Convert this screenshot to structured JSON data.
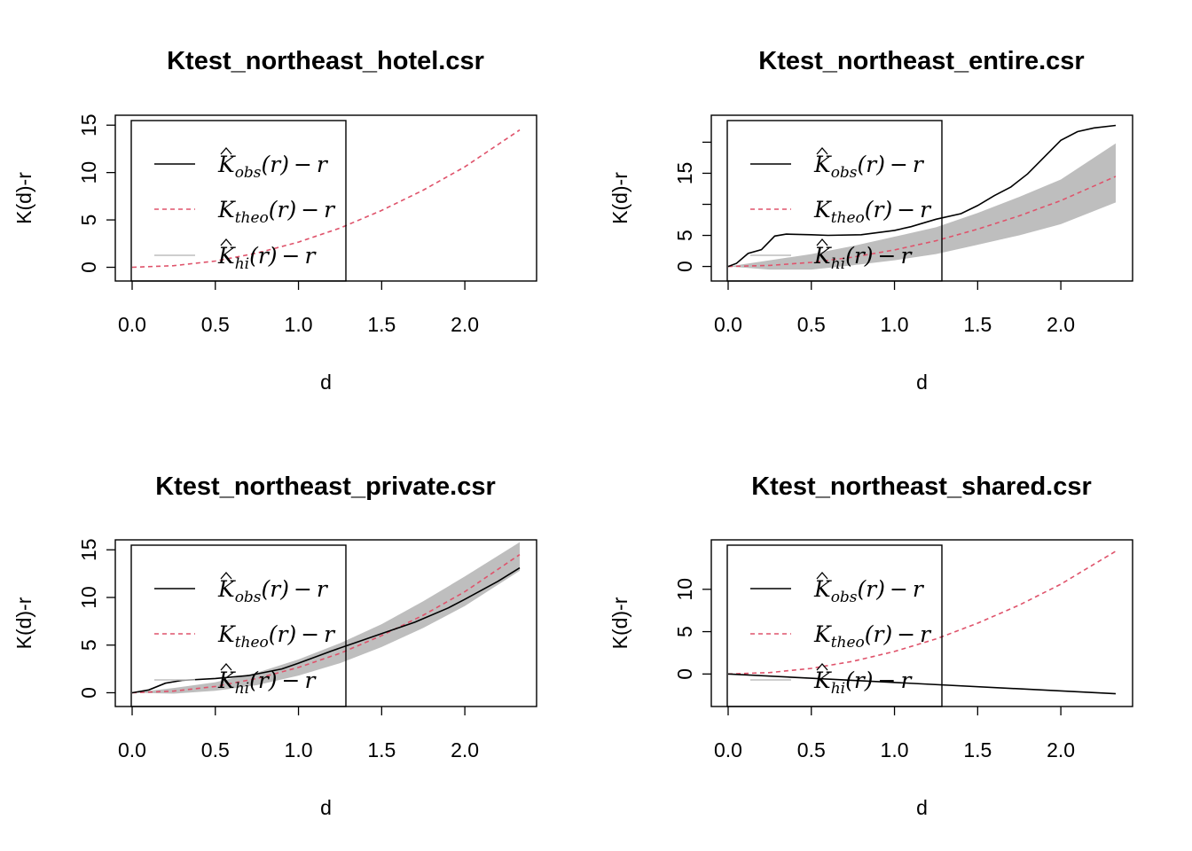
{
  "chart_data": [
    {
      "type": "line",
      "title": "Ktest_northeast_hotel.csr",
      "xlabel": "d",
      "ylabel": "K(d)-r",
      "xlim": [
        0,
        2.33
      ],
      "ylim": [
        -0.7,
        15.3
      ],
      "x_ticks": [
        "0.0",
        "0.5",
        "1.0",
        "1.5",
        "2.0"
      ],
      "y_ticks": [
        "0",
        "5",
        "10",
        "15"
      ],
      "legend": {
        "placement": "top-left",
        "entries": [
          "obs",
          "theo",
          "hi"
        ]
      },
      "envelope": null,
      "series": [
        {
          "name": "theo",
          "style": "dashed",
          "color": "#DF536B",
          "x": [
            0,
            0.25,
            0.5,
            0.75,
            1.0,
            1.25,
            1.5,
            1.75,
            2.0,
            2.33
          ],
          "y": [
            0,
            0.17,
            0.66,
            1.5,
            2.66,
            4.14,
            6.0,
            8.14,
            10.6,
            14.5
          ]
        }
      ]
    },
    {
      "type": "line",
      "title": "Ktest_northeast_entire.csr",
      "xlabel": "d",
      "ylabel": "K(d)-r",
      "xlim": [
        0,
        2.33
      ],
      "ylim": [
        -1.2,
        23.2
      ],
      "x_ticks": [
        "0.0",
        "0.5",
        "1.0",
        "1.5",
        "2.0"
      ],
      "y_ticks": [
        "0",
        "5",
        "15"
      ],
      "legend": {
        "placement": "top-left",
        "entries": [
          "obs",
          "theo",
          "hi"
        ]
      },
      "envelope": {
        "color": "#BEBEBE",
        "x": [
          0,
          0.25,
          0.5,
          0.75,
          1.0,
          1.25,
          1.5,
          1.75,
          2.0,
          2.33
        ],
        "lo": [
          0,
          -0.5,
          -0.5,
          0.2,
          1.0,
          2.0,
          3.5,
          5.0,
          6.8,
          10.3
        ],
        "hi": [
          0,
          1.0,
          2.0,
          3.3,
          4.8,
          6.3,
          8.6,
          11.2,
          14.0,
          19.8
        ]
      },
      "series": [
        {
          "name": "theo",
          "style": "dashed",
          "color": "#DF536B",
          "x": [
            0,
            0.25,
            0.5,
            0.75,
            1.0,
            1.25,
            1.5,
            1.75,
            2.0,
            2.33
          ],
          "y": [
            0,
            0.17,
            0.66,
            1.5,
            2.66,
            4.14,
            6.0,
            8.14,
            10.6,
            14.5
          ]
        },
        {
          "name": "obs",
          "style": "solid",
          "color": "#000000",
          "x": [
            0,
            0.05,
            0.12,
            0.2,
            0.28,
            0.35,
            0.5,
            0.6,
            0.8,
            1.0,
            1.1,
            1.25,
            1.4,
            1.5,
            1.6,
            1.7,
            1.8,
            1.9,
            2.0,
            2.1,
            2.2,
            2.33
          ],
          "y": [
            0,
            0.5,
            2.1,
            2.7,
            4.9,
            5.2,
            5.1,
            5.0,
            5.1,
            5.8,
            6.4,
            7.6,
            8.5,
            9.8,
            11.4,
            12.8,
            14.9,
            17.6,
            20.3,
            21.7,
            22.3,
            22.7
          ]
        }
      ]
    },
    {
      "type": "line",
      "title": "Ktest_northeast_private.csr",
      "xlabel": "d",
      "ylabel": "K(d)-r",
      "xlim": [
        0,
        2.33
      ],
      "ylim": [
        -0.7,
        15.3
      ],
      "x_ticks": [
        "0.0",
        "0.5",
        "1.0",
        "1.5",
        "2.0"
      ],
      "y_ticks": [
        "0",
        "5",
        "10",
        "15"
      ],
      "legend": {
        "placement": "top-left",
        "entries": [
          "obs",
          "theo",
          "hi"
        ]
      },
      "envelope": {
        "color": "#BEBEBE",
        "x": [
          0,
          0.25,
          0.5,
          0.75,
          1.0,
          1.25,
          1.5,
          1.75,
          2.0,
          2.33
        ],
        "lo": [
          0,
          -0.1,
          0.2,
          0.8,
          1.8,
          3.1,
          4.8,
          6.8,
          9.1,
          12.8
        ],
        "hi": [
          0,
          0.5,
          1.1,
          2.1,
          3.5,
          5.2,
          7.2,
          9.6,
          12.2,
          15.8
        ]
      },
      "series": [
        {
          "name": "theo",
          "style": "dashed",
          "color": "#DF536B",
          "x": [
            0,
            0.25,
            0.5,
            0.75,
            1.0,
            1.25,
            1.5,
            1.75,
            2.0,
            2.33
          ],
          "y": [
            0,
            0.17,
            0.66,
            1.5,
            2.66,
            4.14,
            6.0,
            8.14,
            10.6,
            14.5
          ]
        },
        {
          "name": "obs",
          "style": "solid",
          "color": "#000000",
          "x": [
            0,
            0.1,
            0.2,
            0.3,
            0.5,
            0.7,
            0.9,
            1.0,
            1.2,
            1.4,
            1.5,
            1.7,
            1.9,
            2.0,
            2.2,
            2.33
          ],
          "y": [
            0,
            0.3,
            1.0,
            1.3,
            1.5,
            1.8,
            2.5,
            3.1,
            4.4,
            5.6,
            6.2,
            7.4,
            8.9,
            9.8,
            11.7,
            13.1
          ]
        }
      ]
    },
    {
      "type": "line",
      "title": "Ktest_northeast_shared.csr",
      "xlabel": "d",
      "ylabel": "K(d)-r",
      "xlim": [
        0,
        2.33
      ],
      "ylim": [
        -3.0,
        15.0
      ],
      "x_ticks": [
        "0.0",
        "0.5",
        "1.0",
        "1.5",
        "2.0"
      ],
      "y_ticks": [
        "0",
        "5",
        "10"
      ],
      "legend": {
        "placement": "top-left",
        "entries": [
          "obs",
          "theo",
          "hi"
        ]
      },
      "envelope": null,
      "series": [
        {
          "name": "theo",
          "style": "dashed",
          "color": "#DF536B",
          "x": [
            0,
            0.25,
            0.5,
            0.75,
            1.0,
            1.25,
            1.5,
            1.75,
            2.0,
            2.33
          ],
          "y": [
            0,
            0.17,
            0.66,
            1.5,
            2.66,
            4.14,
            6.0,
            8.14,
            10.6,
            14.5
          ]
        },
        {
          "name": "obs",
          "style": "solid",
          "color": "#000000",
          "x": [
            0,
            2.33
          ],
          "y": [
            0,
            -2.33
          ]
        }
      ]
    }
  ]
}
